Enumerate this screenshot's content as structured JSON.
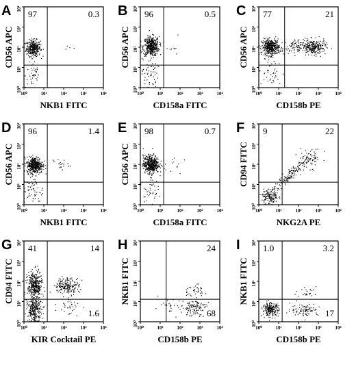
{
  "chart_data": [
    {
      "panel": "A",
      "type": "scatter",
      "xlabel": "NKB1 FITC",
      "ylabel": "CD56 APC",
      "quadrants": {
        "upper_left": "97",
        "upper_right": "0.3"
      },
      "xlim": [
        1,
        10000
      ],
      "ylim": [
        1,
        10000
      ],
      "xscale": "log",
      "yscale": "log",
      "xticks": [
        "10⁰",
        "10¹",
        "10²",
        "10³",
        "10⁴"
      ],
      "yticks": [
        "10⁰",
        "10¹",
        "10²",
        "10³",
        "10⁴"
      ],
      "gate": {
        "x": 15,
        "y": 13
      },
      "clusters": [
        {
          "x": 3,
          "y": 90,
          "n": 320,
          "sx": 0.18,
          "sy": 0.2
        },
        {
          "x": 3,
          "y": 4,
          "n": 40,
          "sx": 0.2,
          "sy": 0.35
        },
        {
          "x": 200,
          "y": 100,
          "n": 4,
          "sx": 0.2,
          "sy": 0.1
        }
      ]
    },
    {
      "panel": "B",
      "type": "scatter",
      "xlabel": "CD158a FITC",
      "ylabel": "CD56 APC",
      "quadrants": {
        "upper_left": "96",
        "upper_right": "0.5"
      },
      "xlim": [
        1,
        10000
      ],
      "ylim": [
        1,
        10000
      ],
      "xscale": "log",
      "yscale": "log",
      "xticks": [
        "10⁰",
        "10¹",
        "10²",
        "10³",
        "10⁴"
      ],
      "yticks": [
        "10⁰",
        "10¹",
        "10²",
        "10³",
        "10⁴"
      ],
      "gate": {
        "x": 15,
        "y": 13
      },
      "clusters": [
        {
          "x": 3.5,
          "y": 110,
          "n": 420,
          "sx": 0.2,
          "sy": 0.24
        },
        {
          "x": 3,
          "y": 5,
          "n": 50,
          "sx": 0.2,
          "sy": 0.35
        },
        {
          "x": 30,
          "y": 100,
          "n": 10,
          "sx": 0.3,
          "sy": 0.3
        }
      ]
    },
    {
      "panel": "C",
      "type": "scatter",
      "xlabel": "CD158b PE",
      "ylabel": "CD56 APC",
      "quadrants": {
        "upper_left": "77",
        "upper_right": "21"
      },
      "xlim": [
        1,
        10000
      ],
      "ylim": [
        1,
        10000
      ],
      "xscale": "log",
      "yscale": "log",
      "xticks": [
        "10⁰",
        "10¹",
        "10²",
        "10³",
        "10⁴"
      ],
      "yticks": [
        "10⁰",
        "10¹",
        "10²",
        "10³",
        "10⁴"
      ],
      "gate": {
        "x": 20,
        "y": 13
      },
      "clusters": [
        {
          "x": 4,
          "y": 100,
          "n": 400,
          "sx": 0.22,
          "sy": 0.2
        },
        {
          "x": 600,
          "y": 100,
          "n": 230,
          "sx": 0.3,
          "sy": 0.18
        },
        {
          "x": 60,
          "y": 100,
          "n": 90,
          "sx": 0.35,
          "sy": 0.18
        },
        {
          "x": 4,
          "y": 5,
          "n": 40,
          "sx": 0.3,
          "sy": 0.35
        }
      ]
    },
    {
      "panel": "D",
      "type": "scatter",
      "xlabel": "NKB1 FITC",
      "ylabel": "CD56 APC",
      "quadrants": {
        "upper_left": "96",
        "upper_right": "1.4"
      },
      "xlim": [
        1,
        10000
      ],
      "ylim": [
        1,
        10000
      ],
      "xscale": "log",
      "yscale": "log",
      "xticks": [
        "10⁰",
        "10¹",
        "10²",
        "10³",
        "10⁴"
      ],
      "yticks": [
        "10⁰",
        "10¹",
        "10²",
        "10³",
        "10⁴"
      ],
      "gate": {
        "x": 15,
        "y": 13
      },
      "clusters": [
        {
          "x": 3.5,
          "y": 90,
          "n": 400,
          "sx": 0.2,
          "sy": 0.2
        },
        {
          "x": 3,
          "y": 5,
          "n": 60,
          "sx": 0.25,
          "sy": 0.35
        },
        {
          "x": 70,
          "y": 100,
          "n": 18,
          "sx": 0.2,
          "sy": 0.15
        }
      ]
    },
    {
      "panel": "E",
      "type": "scatter",
      "xlabel": "CD158a FITC",
      "ylabel": "CD56 APC",
      "quadrants": {
        "upper_left": "98",
        "upper_right": "0.7"
      },
      "xlim": [
        1,
        10000
      ],
      "ylim": [
        1,
        10000
      ],
      "xscale": "log",
      "yscale": "log",
      "xticks": [
        "10⁰",
        "10¹",
        "10²",
        "10³",
        "10⁴"
      ],
      "yticks": [
        "10⁰",
        "10¹",
        "10²",
        "10³",
        "10⁴"
      ],
      "gate": {
        "x": 15,
        "y": 13
      },
      "clusters": [
        {
          "x": 3.5,
          "y": 100,
          "n": 450,
          "sx": 0.2,
          "sy": 0.22
        },
        {
          "x": 3,
          "y": 6,
          "n": 40,
          "sx": 0.2,
          "sy": 0.3
        },
        {
          "x": 40,
          "y": 100,
          "n": 12,
          "sx": 0.25,
          "sy": 0.25
        }
      ]
    },
    {
      "panel": "F",
      "type": "scatter",
      "xlabel": "NKG2A PE",
      "ylabel": "CD94 FITC",
      "quadrants": {
        "upper_left": "9",
        "upper_right": "22"
      },
      "xlim": [
        1,
        10000
      ],
      "ylim": [
        1,
        10000
      ],
      "xscale": "log",
      "yscale": "log",
      "xticks": [
        "10⁰",
        "10¹",
        "10²",
        "10³",
        "10⁴"
      ],
      "yticks": [
        "10⁰",
        "10¹",
        "10²",
        "10³",
        "10⁴"
      ],
      "gate": {
        "x": 15,
        "y": 13
      },
      "clusters": [
        {
          "x": 3.5,
          "y": 2.5,
          "n": 130,
          "sx": 0.2,
          "sy": 0.18
        },
        {
          "x": 40,
          "y": 30,
          "n": 150,
          "sx": 0.45,
          "sy": 0.45,
          "diag": true
        },
        {
          "x": 400,
          "y": 200,
          "n": 60,
          "sx": 0.3,
          "sy": 0.25
        }
      ]
    },
    {
      "panel": "G",
      "type": "scatter",
      "xlabel": "KIR Cocktail PE",
      "ylabel": "CD94 FITC",
      "quadrants": {
        "upper_left": "41",
        "upper_right": "14",
        "lower_right": "1.6"
      },
      "xlim": [
        1,
        10000
      ],
      "ylim": [
        1,
        10000
      ],
      "xscale": "log",
      "yscale": "log",
      "xticks": [
        "10⁰",
        "10¹",
        "10²",
        "10³",
        "10⁴"
      ],
      "yticks": [
        "10⁰",
        "10¹",
        "10²",
        "10³",
        "10⁴"
      ],
      "gate": {
        "x": 15,
        "y": 13
      },
      "clusters": [
        {
          "x": 3.5,
          "y": 60,
          "n": 350,
          "sx": 0.18,
          "sy": 0.35
        },
        {
          "x": 3.5,
          "y": 4,
          "n": 250,
          "sx": 0.18,
          "sy": 0.3
        },
        {
          "x": 150,
          "y": 60,
          "n": 180,
          "sx": 0.3,
          "sy": 0.2
        },
        {
          "x": 200,
          "y": 6,
          "n": 30,
          "sx": 0.3,
          "sy": 0.25
        }
      ]
    },
    {
      "panel": "H",
      "type": "scatter",
      "xlabel": "CD158b PE",
      "ylabel": "NKB1 FITC",
      "quadrants": {
        "upper_right": "24",
        "lower_right": "68"
      },
      "xlim": [
        1,
        10000
      ],
      "ylim": [
        1,
        10000
      ],
      "xscale": "log",
      "yscale": "log",
      "xticks": [
        "10⁰",
        "10¹",
        "10²",
        "10³",
        "10⁴"
      ],
      "yticks": [
        "10⁰",
        "10¹",
        "10²",
        "10³",
        "10⁴"
      ],
      "gate": {
        "x": 20,
        "y": 13
      },
      "clusters": [
        {
          "x": 500,
          "y": 5,
          "n": 110,
          "sx": 0.3,
          "sy": 0.2
        },
        {
          "x": 500,
          "y": 35,
          "n": 40,
          "sx": 0.3,
          "sy": 0.15
        },
        {
          "x": 30,
          "y": 5,
          "n": 25,
          "sx": 0.4,
          "sy": 0.2
        }
      ]
    },
    {
      "panel": "I",
      "type": "scatter",
      "xlabel": "CD158b PE",
      "ylabel": "NKB1 FITC",
      "quadrants": {
        "upper_left": "1.0",
        "upper_right": "3.2",
        "lower_right": "17"
      },
      "xlim": [
        1,
        10000
      ],
      "ylim": [
        1,
        10000
      ],
      "xscale": "log",
      "yscale": "log",
      "xticks": [
        "10⁰",
        "10¹",
        "10²",
        "10³",
        "10⁴"
      ],
      "yticks": [
        "10⁰",
        "10¹",
        "10²",
        "10³",
        "10⁴"
      ],
      "gate": {
        "x": 15,
        "y": 13
      },
      "clusters": [
        {
          "x": 4,
          "y": 4,
          "n": 220,
          "sx": 0.2,
          "sy": 0.16
        },
        {
          "x": 200,
          "y": 4,
          "n": 90,
          "sx": 0.35,
          "sy": 0.15
        },
        {
          "x": 300,
          "y": 30,
          "n": 25,
          "sx": 0.3,
          "sy": 0.15
        }
      ]
    }
  ]
}
